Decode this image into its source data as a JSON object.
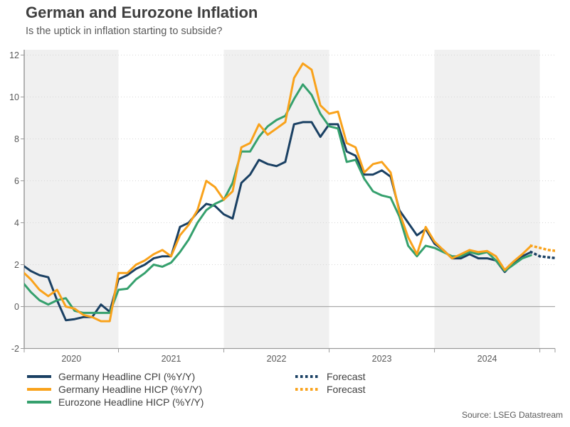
{
  "title": "German and Eurozone Inflation",
  "subtitle": "Is the uptick in inflation starting to subside?",
  "source": "Source: LSEG Datastream",
  "legend": {
    "items": [
      {
        "label": "Germany Headline CPI (%Y/Y)",
        "color": "#1a4063",
        "style": "solid"
      },
      {
        "label": "Germany Headline HICP (%Y/Y)",
        "color": "#f9a21b",
        "style": "solid"
      },
      {
        "label": "Eurozone Headline HICP (%Y/Y)",
        "color": "#35a06d",
        "style": "solid"
      },
      {
        "label": "Forecast",
        "color": "#1a4063",
        "style": "dotted"
      },
      {
        "label": "Forecast",
        "color": "#f9a21b",
        "style": "dotted"
      }
    ]
  },
  "chart_data": {
    "type": "line",
    "title": "German and Eurozone Inflation",
    "subtitle": "Is the uptick in inflation starting to subside?",
    "x_axis": {
      "tick_labels": [
        "2020",
        "2021",
        "2022",
        "2023",
        "2024"
      ],
      "range_months": [
        "2020-01",
        "2025-03"
      ]
    },
    "y_axis": {
      "min": -2,
      "max": 12,
      "tick_step": 2,
      "tick_labels": [
        "-2",
        "0",
        "2",
        "4",
        "6",
        "8",
        "10",
        "12"
      ]
    },
    "shaded_year_bands": [
      "2020",
      "2022",
      "2024"
    ],
    "grid": "dotted-horizontal",
    "legend_position": "bottom",
    "data_start_month": "2020-02",
    "forecast_start_month": "2025-01",
    "colors": {
      "band": "#f0f0f0",
      "grid": "#d7d7d7",
      "zero_line": "#a9a9a9",
      "axis": "#9b9b9b",
      "tick_text": "#595959"
    },
    "series": [
      {
        "name": "Germany Headline CPI (%Y/Y)",
        "color": "#1a4063",
        "values": [
          2.0,
          1.7,
          1.5,
          1.4,
          0.3,
          -0.65,
          -0.6,
          -0.5,
          -0.5,
          0.1,
          -0.25,
          1.3,
          1.5,
          1.8,
          2.0,
          2.3,
          2.4,
          2.4,
          3.8,
          4.0,
          4.5,
          4.9,
          4.8,
          4.4,
          4.2,
          5.9,
          6.3,
          7.0,
          6.8,
          6.7,
          6.9,
          8.7,
          8.8,
          8.8,
          8.1,
          8.7,
          8.7,
          7.4,
          7.2,
          6.3,
          6.3,
          6.5,
          6.2,
          4.6,
          4.0,
          3.4,
          3.7,
          3.0,
          2.7,
          2.3,
          2.3,
          2.5,
          2.3,
          2.3,
          2.2,
          1.65,
          2.1,
          2.4,
          2.6
        ],
        "forecast": [
          2.4,
          2.35,
          2.3
        ]
      },
      {
        "name": "Germany Headline HICP (%Y/Y)",
        "color": "#f9a21b",
        "values": [
          1.7,
          1.3,
          0.8,
          0.5,
          0.8,
          0.0,
          -0.1,
          -0.4,
          -0.5,
          -0.7,
          -0.7,
          1.6,
          1.6,
          2.0,
          2.2,
          2.5,
          2.7,
          2.4,
          3.4,
          3.9,
          4.6,
          6.0,
          5.7,
          5.1,
          5.5,
          7.6,
          7.8,
          8.7,
          8.2,
          8.5,
          8.8,
          10.9,
          11.6,
          11.3,
          9.6,
          9.2,
          9.3,
          7.8,
          7.6,
          6.4,
          6.8,
          6.9,
          6.4,
          4.5,
          3.3,
          2.5,
          3.8,
          3.1,
          2.7,
          2.3,
          2.5,
          2.7,
          2.6,
          2.65,
          2.4,
          1.75,
          2.15,
          2.5,
          2.9
        ],
        "forecast": [
          2.8,
          2.7,
          2.65
        ]
      },
      {
        "name": "Eurozone Headline HICP (%Y/Y)",
        "color": "#35a06d",
        "values": [
          1.2,
          0.7,
          0.3,
          0.1,
          0.3,
          0.4,
          -0.2,
          -0.3,
          -0.3,
          -0.3,
          -0.3,
          0.8,
          0.85,
          1.3,
          1.6,
          2.0,
          1.9,
          2.1,
          2.6,
          3.2,
          4.0,
          4.6,
          4.9,
          5.1,
          5.9,
          7.4,
          7.4,
          8.1,
          8.6,
          8.9,
          9.1,
          9.9,
          10.6,
          10.1,
          9.2,
          8.6,
          8.5,
          6.9,
          7.0,
          6.1,
          5.5,
          5.3,
          5.2,
          4.3,
          2.9,
          2.4,
          2.9,
          2.8,
          2.6,
          2.4,
          2.4,
          2.6,
          2.5,
          2.6,
          2.2,
          1.7,
          2.0,
          2.3,
          2.45
        ]
      }
    ]
  }
}
